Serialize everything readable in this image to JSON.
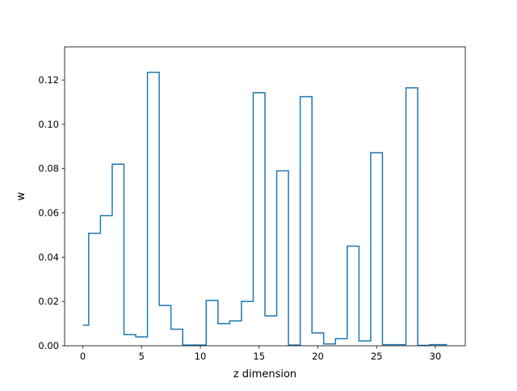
{
  "chart_data": {
    "type": "line",
    "drawstyle": "steps-mid",
    "title": "",
    "xlabel": "z dimension",
    "ylabel": "w",
    "xlim": [
      -1.55,
      32.55
    ],
    "ylim": [
      0,
      0.135
    ],
    "x_ticks": [
      0,
      5,
      10,
      15,
      20,
      25,
      30
    ],
    "y_ticks": [
      0.0,
      0.02,
      0.04,
      0.06,
      0.08,
      0.1,
      0.12
    ],
    "x_tick_labels": [
      "0",
      "5",
      "10",
      "15",
      "20",
      "25",
      "30"
    ],
    "y_tick_labels": [
      "0.00",
      "0.02",
      "0.04",
      "0.06",
      "0.08",
      "0.10",
      "0.12"
    ],
    "color": "#1f77b4",
    "series": [
      {
        "x": [
          0,
          1,
          2,
          3,
          4,
          5,
          6,
          7,
          8,
          9,
          10,
          11,
          12,
          13,
          14,
          15,
          16,
          17,
          18,
          19,
          20,
          21,
          22,
          23,
          24,
          25,
          26,
          27,
          28,
          29,
          30,
          31
        ],
        "values": [
          0.0093,
          0.0508,
          0.0588,
          0.082,
          0.005,
          0.004,
          0.1235,
          0.0182,
          0.0075,
          0.0003,
          0.0003,
          0.0205,
          0.01,
          0.0112,
          0.02,
          0.1143,
          0.0135,
          0.079,
          0.0003,
          0.1125,
          0.0058,
          0.0008,
          0.0032,
          0.045,
          0.0022,
          0.0872,
          0.0005,
          0.0005,
          0.1165,
          0.0002,
          0.0005,
          0.0005
        ]
      }
    ]
  }
}
